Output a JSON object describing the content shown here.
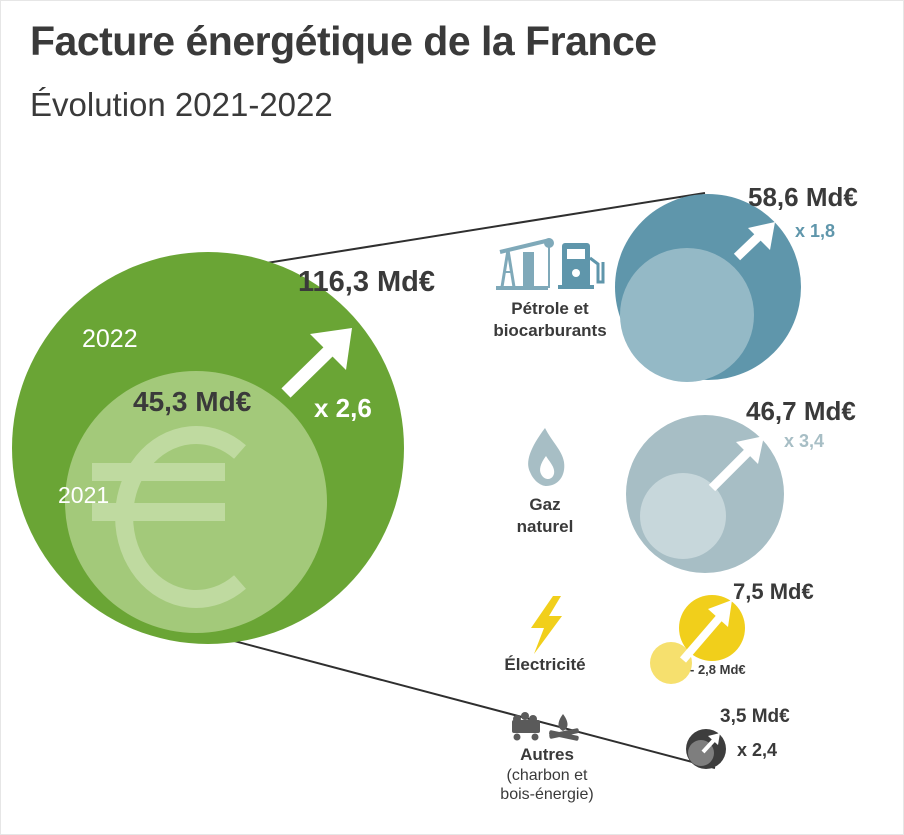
{
  "header": {
    "title": "Facture énergétique de la France",
    "subtitle": "Évolution 2021-2022"
  },
  "total": {
    "year_2022_label": "2022",
    "year_2021_label": "2021",
    "value_2022": "116,3 Md€",
    "value_2021": "45,3 Md€",
    "multiplier": "x 2,6"
  },
  "categories": {
    "petrole": {
      "label": "Pétrole et biocarburants",
      "label_line1": "Pétrole et",
      "label_line2": "biocarburants",
      "value": "58,6 Md€",
      "multiplier": "x 1,8"
    },
    "gaz": {
      "label_line1": "Gaz",
      "label_line2": "naturel",
      "value": "46,7 Md€",
      "multiplier": "x 3,4"
    },
    "electricite": {
      "label": "Électricité",
      "value": "7,5 Md€",
      "value_2021": "- 2,8 Md€"
    },
    "autres": {
      "label": "Autres",
      "sub_line1": "(charbon et",
      "sub_line2": "bois-énergie)",
      "value": "3,5 Md€",
      "multiplier": "x 2,4"
    }
  },
  "colors": {
    "green_dark": "#6aa535",
    "green_light": "#a3c97a",
    "blue_dark": "#5f96ab",
    "blue_light": "#94b9c6",
    "gas_dark": "#a7bec5",
    "gas_light": "#c7d7db",
    "elec_dark": "#f1cf1b",
    "elec_light": "#f6e06e",
    "other_dark": "#3d3d3d",
    "other_light": "#7e7e7e"
  }
}
